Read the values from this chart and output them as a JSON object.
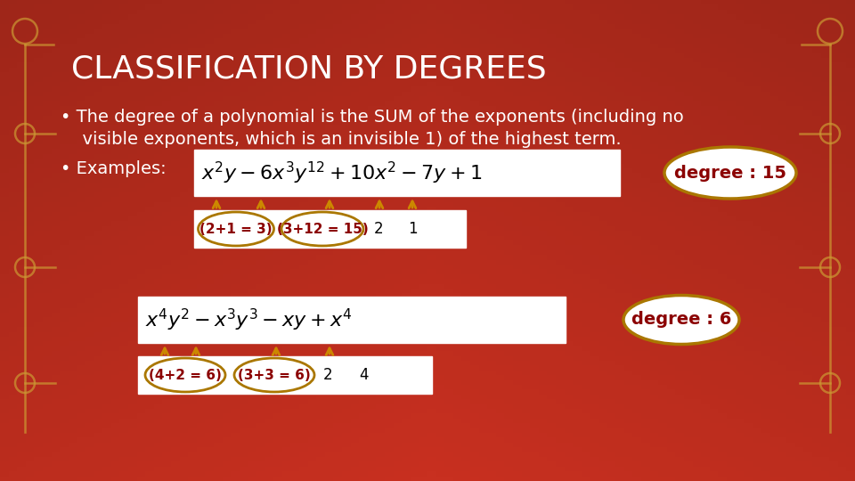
{
  "title": "CLASSIFICATION BY DEGREES",
  "bg_color": "#CC3322",
  "bg_dark": "#991100",
  "circuit_color": "#CC9933",
  "white": "#FFFFFF",
  "dark_red": "#8B0000",
  "annot_color": "#AA7700",
  "expr1": "$x^2y - 6x^3y^{12} + 10x^2 - 7y + 1$",
  "expr2": "$x^4y^2 - x^3y^3 - xy + x^4$",
  "degree1": "degree : 15",
  "degree2": "degree : 6",
  "annot1_texts": [
    "(2+1 = 3)",
    "(3+12 = 15)",
    "2",
    "1"
  ],
  "annot2_texts": [
    "(4+2 = 6)",
    "(3+3 = 6)",
    "2",
    "4"
  ],
  "bullet1": "The degree of a polynomial is the SUM of the exponents (including no",
  "bullet1b": "  visible exponents, which is an invisible 1) of the highest term.",
  "bullet2": "Examples:"
}
